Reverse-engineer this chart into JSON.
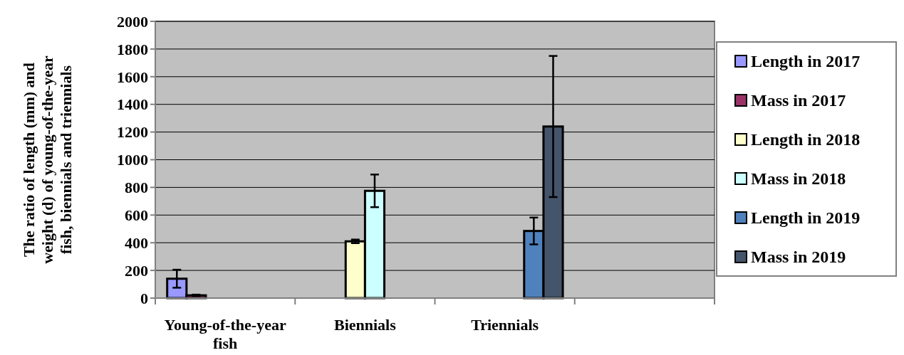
{
  "chart_data": {
    "type": "bar",
    "ylabel": "The ratio of length (mm) and weight (d) of young-of-the-year fish, biennials and triennials",
    "categories": [
      "Young-of-the-year fish",
      "Biennials",
      "Triennials",
      null
    ],
    "series": [
      {
        "name": "Length in 2017",
        "color": "#9999ff",
        "values": [
          140,
          null,
          null,
          null
        ],
        "errors": [
          65,
          null,
          null,
          null
        ]
      },
      {
        "name": "Mass in 2017",
        "color": "#993366",
        "values": [
          20,
          null,
          null,
          null
        ],
        "errors": [
          5,
          null,
          null,
          null
        ]
      },
      {
        "name": "Length in 2018",
        "color": "#ffffcc",
        "values": [
          null,
          410,
          null,
          null
        ],
        "errors": [
          null,
          13,
          null,
          null
        ]
      },
      {
        "name": "Mass in 2018",
        "color": "#ccffff",
        "values": [
          null,
          775,
          null,
          null
        ],
        "errors": [
          null,
          118,
          null,
          null
        ]
      },
      {
        "name": "Length in 2019",
        "color": "#4f81bd",
        "values": [
          null,
          null,
          485,
          null
        ],
        "errors": [
          null,
          null,
          97,
          null
        ]
      },
      {
        "name": "Mass in 2019",
        "color": "#44546a",
        "values": [
          null,
          null,
          1240,
          null
        ],
        "errors": [
          null,
          null,
          510,
          null
        ]
      }
    ],
    "ylim": [
      0,
      2000
    ],
    "yticks": [
      0,
      200,
      400,
      600,
      800,
      1000,
      1200,
      1400,
      1600,
      1800,
      2000
    ],
    "grid": "y",
    "legend": "right"
  }
}
